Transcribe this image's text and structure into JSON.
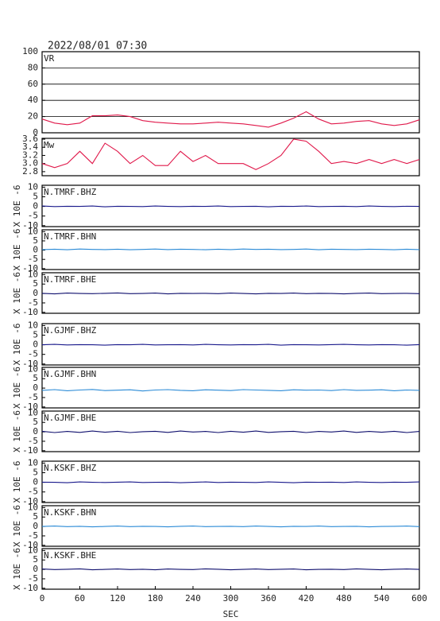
{
  "chart_data": [
    {
      "type": "line",
      "title": "2022/08/01 07:30",
      "label": "VR",
      "color": "#e0184a",
      "grid": true,
      "xlim": [
        0,
        600
      ],
      "ylim": [
        0,
        100
      ],
      "yticks": [
        0,
        20,
        40,
        60,
        80,
        100
      ],
      "x": [
        0,
        20,
        40,
        60,
        80,
        100,
        120,
        140,
        160,
        180,
        200,
        220,
        240,
        260,
        280,
        300,
        320,
        340,
        360,
        380,
        400,
        420,
        440,
        460,
        480,
        500,
        520,
        540,
        560,
        580,
        600
      ],
      "values": [
        17,
        12,
        10,
        12,
        21,
        21,
        22,
        20,
        15,
        13,
        12,
        11,
        11,
        12,
        13,
        12,
        11,
        9,
        7,
        12,
        18,
        26,
        17,
        11,
        12,
        14,
        15,
        11,
        9,
        11,
        16
      ]
    },
    {
      "type": "line",
      "label": "Mw",
      "color": "#e0184a",
      "grid": false,
      "xlim": [
        0,
        600
      ],
      "ylim": [
        2.7,
        3.62
      ],
      "yticks": [
        2.8,
        {
          "value": 3,
          "label": "3.0"
        },
        3.2,
        3.4,
        3.6
      ],
      "x": [
        0,
        20,
        40,
        60,
        80,
        100,
        120,
        140,
        160,
        180,
        200,
        220,
        240,
        260,
        280,
        300,
        320,
        340,
        360,
        380,
        400,
        420,
        440,
        460,
        480,
        500,
        520,
        540,
        560,
        580,
        600
      ],
      "values": [
        3.0,
        2.9,
        3.0,
        3.3,
        3.0,
        3.5,
        3.3,
        3.0,
        3.2,
        2.95,
        2.95,
        3.3,
        3.05,
        3.2,
        3.0,
        3.0,
        3.0,
        2.85,
        3.0,
        3.2,
        3.6,
        3.55,
        3.3,
        3.0,
        3.05,
        3.0,
        3.1,
        3.0,
        3.1,
        3.0,
        3.1
      ]
    },
    {
      "type": "line",
      "label": "N.TMRF.BHZ",
      "ylabel": "X 10E -6",
      "color": "#1a1a8c",
      "xlim": [
        0,
        600
      ],
      "ylim": [
        -10.5,
        11
      ],
      "yticks": [
        -10,
        -5,
        0,
        5,
        10
      ],
      "x": [
        0,
        20,
        40,
        60,
        80,
        100,
        120,
        140,
        160,
        180,
        200,
        220,
        240,
        260,
        280,
        300,
        320,
        340,
        360,
        380,
        400,
        420,
        440,
        460,
        480,
        500,
        520,
        540,
        560,
        580,
        600
      ],
      "values": [
        0.2,
        -0.1,
        0.1,
        0,
        0.2,
        -0.2,
        0.1,
        0,
        -0.1,
        0.2,
        0,
        -0.1,
        0.1,
        0,
        0.2,
        -0.1,
        0,
        0.1,
        -0.2,
        0.1,
        0,
        0.2,
        -0.1,
        0,
        0.1,
        -0.1,
        0.2,
        0,
        -0.1,
        0.1,
        0
      ]
    },
    {
      "type": "line",
      "label": "N.TMRF.BHN",
      "ylabel": "X 10E -6",
      "color": "#2a8ad6",
      "xlim": [
        0,
        600
      ],
      "ylim": [
        -10.5,
        11
      ],
      "yticks": [
        -10,
        -5,
        0,
        5,
        10
      ],
      "x": [
        0,
        20,
        40,
        60,
        80,
        100,
        120,
        140,
        160,
        180,
        200,
        220,
        240,
        260,
        280,
        300,
        320,
        340,
        360,
        380,
        400,
        420,
        440,
        460,
        480,
        500,
        520,
        540,
        560,
        580,
        600
      ],
      "values": [
        0.3,
        0.5,
        0.2,
        0.6,
        0.4,
        0.3,
        0.5,
        0.2,
        0.4,
        0.6,
        0.3,
        0.5,
        0.4,
        0.2,
        0.5,
        0.3,
        0.6,
        0.4,
        0.5,
        0.3,
        0.4,
        0.6,
        0.2,
        0.5,
        0.4,
        0.3,
        0.5,
        0.4,
        0.2,
        0.5,
        0.3
      ]
    },
    {
      "type": "line",
      "label": "N.TMRF.BHE",
      "ylabel": "X 10E -6",
      "color": "#10106e",
      "xlim": [
        0,
        600
      ],
      "ylim": [
        -10.5,
        11
      ],
      "yticks": [
        -10,
        -5,
        0,
        5,
        10
      ],
      "x": [
        0,
        20,
        40,
        60,
        80,
        100,
        120,
        140,
        160,
        180,
        200,
        220,
        240,
        260,
        280,
        300,
        320,
        340,
        360,
        380,
        400,
        420,
        440,
        460,
        480,
        500,
        520,
        540,
        560,
        580,
        600
      ],
      "values": [
        0.1,
        -0.2,
        0.2,
        0,
        -0.1,
        0.1,
        0.3,
        -0.1,
        0,
        0.2,
        -0.2,
        0.1,
        0,
        0.1,
        -0.1,
        0.2,
        0,
        -0.2,
        0.1,
        0,
        0.2,
        -0.1,
        0.1,
        0,
        -0.2,
        0.1,
        0.2,
        -0.1,
        0,
        0.1,
        -0.1
      ]
    },
    {
      "type": "line",
      "label": "N.GJMF.BHZ",
      "ylabel": "X 10E -6",
      "color": "#1a1a8c",
      "xlim": [
        0,
        600
      ],
      "ylim": [
        -10.5,
        11
      ],
      "yticks": [
        -10,
        -5,
        0,
        5,
        10
      ],
      "x": [
        0,
        20,
        40,
        60,
        80,
        100,
        120,
        140,
        160,
        180,
        200,
        220,
        240,
        260,
        280,
        300,
        320,
        340,
        360,
        380,
        400,
        420,
        440,
        460,
        480,
        500,
        520,
        540,
        560,
        580,
        600
      ],
      "values": [
        0,
        0.2,
        -0.1,
        0.1,
        0,
        -0.2,
        0.1,
        0,
        0.2,
        -0.1,
        0,
        0.1,
        -0.1,
        0.2,
        0,
        -0.1,
        0.1,
        0,
        0.2,
        -0.2,
        0.1,
        0,
        -0.1,
        0.1,
        0.2,
        0,
        -0.1,
        0.1,
        0,
        -0.2,
        0.1
      ]
    },
    {
      "type": "line",
      "label": "N.GJMF.BHN",
      "ylabel": "X 10E -6",
      "color": "#2a8ad6",
      "xlim": [
        0,
        600
      ],
      "ylim": [
        -10.5,
        11
      ],
      "yticks": [
        -10,
        -5,
        0,
        5,
        10
      ],
      "x": [
        0,
        20,
        40,
        60,
        80,
        100,
        120,
        140,
        160,
        180,
        200,
        220,
        240,
        260,
        280,
        300,
        320,
        340,
        360,
        380,
        400,
        420,
        440,
        460,
        480,
        500,
        520,
        540,
        560,
        580,
        600
      ],
      "values": [
        -1.2,
        -0.8,
        -1.4,
        -1.0,
        -0.7,
        -1.3,
        -1.1,
        -0.9,
        -1.5,
        -1.0,
        -0.8,
        -1.2,
        -1.4,
        -0.9,
        -1.1,
        -1.3,
        -0.8,
        -1.0,
        -1.2,
        -1.4,
        -0.9,
        -1.1,
        -1.0,
        -1.3,
        -0.8,
        -1.2,
        -1.1,
        -0.9,
        -1.4,
        -1.0,
        -1.2
      ]
    },
    {
      "type": "line",
      "label": "N.GJMF.BHE",
      "ylabel": "X 10E -6",
      "color": "#10106e",
      "xlim": [
        0,
        600
      ],
      "ylim": [
        -10.5,
        11
      ],
      "yticks": [
        -10,
        -5,
        0,
        5,
        10
      ],
      "x": [
        0,
        20,
        40,
        60,
        80,
        100,
        120,
        140,
        160,
        180,
        200,
        220,
        240,
        260,
        280,
        300,
        320,
        340,
        360,
        380,
        400,
        420,
        440,
        460,
        480,
        500,
        520,
        540,
        560,
        580,
        600
      ],
      "values": [
        0.3,
        -0.4,
        0.2,
        -0.3,
        0.4,
        -0.2,
        0.3,
        -0.4,
        0.1,
        0.3,
        -0.3,
        0.4,
        -0.1,
        0.2,
        -0.4,
        0.3,
        -0.2,
        0.4,
        -0.3,
        0.1,
        0.3,
        -0.4,
        0.2,
        -0.1,
        0.4,
        -0.3,
        0.2,
        -0.2,
        0.3,
        -0.4,
        0.2
      ]
    },
    {
      "type": "line",
      "label": "N.KSKF.BHZ",
      "ylabel": "X 10E -6",
      "color": "#1a1a8c",
      "xlim": [
        0,
        600
      ],
      "ylim": [
        -10.5,
        11
      ],
      "yticks": [
        -10,
        -5,
        0,
        5,
        10
      ],
      "x": [
        0,
        20,
        40,
        60,
        80,
        100,
        120,
        140,
        160,
        180,
        200,
        220,
        240,
        260,
        280,
        300,
        320,
        340,
        360,
        380,
        400,
        420,
        440,
        460,
        480,
        500,
        520,
        540,
        560,
        580,
        600
      ],
      "values": [
        0.1,
        0,
        -0.2,
        0.2,
        0,
        -0.1,
        0.1,
        0.2,
        -0.1,
        0,
        0.1,
        -0.2,
        0,
        0.2,
        -0.1,
        0.1,
        0,
        -0.1,
        0.2,
        0,
        -0.2,
        0.1,
        0,
        0.1,
        -0.1,
        0.2,
        0,
        -0.1,
        0.1,
        0,
        0.2
      ]
    },
    {
      "type": "line",
      "label": "N.KSKF.BHN",
      "ylabel": "X 10E -6",
      "color": "#2a8ad6",
      "xlim": [
        0,
        600
      ],
      "ylim": [
        -10.5,
        11
      ],
      "yticks": [
        -10,
        -5,
        0,
        5,
        10
      ],
      "x": [
        0,
        20,
        40,
        60,
        80,
        100,
        120,
        140,
        160,
        180,
        200,
        220,
        240,
        260,
        280,
        300,
        320,
        340,
        360,
        380,
        400,
        420,
        440,
        460,
        480,
        500,
        520,
        540,
        560,
        580,
        600
      ],
      "values": [
        0,
        0.2,
        -0.1,
        0.1,
        -0.2,
        0,
        0.2,
        -0.1,
        0.1,
        0,
        -0.2,
        0.1,
        0.2,
        -0.1,
        0,
        0.1,
        -0.1,
        0.2,
        0,
        -0.2,
        0.1,
        0,
        0.2,
        -0.1,
        0,
        0.1,
        -0.2,
        0,
        0.1,
        0.2,
        -0.1
      ]
    },
    {
      "type": "line",
      "label": "N.KSKF.BHE",
      "ylabel": "X 10E -6",
      "color": "#10106e",
      "xlim": [
        0,
        600
      ],
      "ylim": [
        -10.5,
        11
      ],
      "yticks": [
        -10,
        -5,
        0,
        5,
        10
      ],
      "xticks": [
        0,
        60,
        120,
        180,
        240,
        300,
        360,
        420,
        480,
        540,
        600
      ],
      "xlabel": "SEC",
      "x": [
        0,
        20,
        40,
        60,
        80,
        100,
        120,
        140,
        160,
        180,
        200,
        220,
        240,
        260,
        280,
        300,
        320,
        340,
        360,
        380,
        400,
        420,
        440,
        460,
        480,
        500,
        520,
        540,
        560,
        580,
        600
      ],
      "values": [
        0.2,
        -0.1,
        0.1,
        0.3,
        -0.2,
        0,
        0.2,
        -0.1,
        0.1,
        -0.2,
        0.2,
        0,
        -0.1,
        0.3,
        0.1,
        -0.2,
        0,
        0.2,
        -0.1,
        0.1,
        0.2,
        -0.2,
        0,
        0.1,
        -0.1,
        0.3,
        0,
        -0.2,
        0.1,
        0.2,
        0
      ]
    }
  ]
}
